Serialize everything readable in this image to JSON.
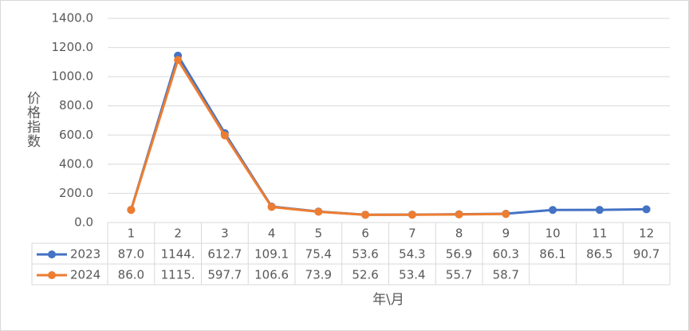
{
  "chart_data": {
    "type": "line",
    "x_label": "年\\月",
    "y_label": "价格指数",
    "categories": [
      "1",
      "2",
      "3",
      "4",
      "5",
      "6",
      "7",
      "8",
      "9",
      "10",
      "11",
      "12"
    ],
    "series": [
      {
        "name": "2023",
        "color": "#4472c4",
        "values": [
          87.0,
          1144,
          612.7,
          109.1,
          75.4,
          53.6,
          54.3,
          56.9,
          60.3,
          86.1,
          86.5,
          90.7
        ],
        "value_labels": [
          "87.0",
          "1144.",
          "612.7",
          "109.1",
          "75.4",
          "53.6",
          "54.3",
          "56.9",
          "60.3",
          "86.1",
          "86.5",
          "90.7"
        ]
      },
      {
        "name": "2024",
        "color": "#ed7d31",
        "values": [
          86.0,
          1115,
          597.7,
          106.6,
          73.9,
          52.6,
          53.4,
          55.7,
          58.7,
          null,
          null,
          null
        ],
        "value_labels": [
          "86.0",
          "1115.",
          "597.7",
          "106.6",
          "73.9",
          "52.6",
          "53.4",
          "55.7",
          "58.7",
          null,
          null,
          null
        ]
      }
    ],
    "ylim": [
      0,
      1400
    ],
    "yticks": [
      {
        "value": 0,
        "label": "0.0"
      },
      {
        "value": 200,
        "label": "200.0"
      },
      {
        "value": 400,
        "label": "400.0"
      },
      {
        "value": 600,
        "label": "600.0"
      },
      {
        "value": 800,
        "label": "800.0"
      },
      {
        "value": 1000,
        "label": "1000.0"
      },
      {
        "value": 1200,
        "label": "1200.0"
      },
      {
        "value": 1400,
        "label": "1400.0"
      }
    ],
    "grid": true,
    "data_table": true
  }
}
